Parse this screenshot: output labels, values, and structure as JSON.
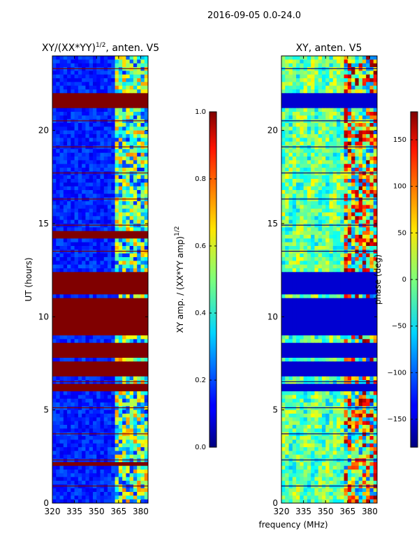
{
  "chart_data": [
    {
      "type": "heatmap",
      "suptitle": "2016-09-05 0.0-24.0",
      "title": "XY/(XX*YY)",
      "title_exp": "1/2",
      "title_suffix": ", anten. V5",
      "ylabel": "UT (hours)",
      "x_ticks": [
        320,
        335,
        350,
        365,
        380
      ],
      "xlim": [
        320,
        385
      ],
      "y_ticks": [
        0,
        5,
        10,
        15,
        20
      ],
      "ylim": [
        0,
        24
      ],
      "flagged_bands_hours": [
        [
          21.2,
          22.0
        ],
        [
          11.2,
          12.3
        ],
        [
          9.0,
          10.9
        ],
        [
          7.7,
          8.5
        ],
        [
          6.8,
          7.6
        ],
        [
          5.9,
          6.4
        ],
        [
          14.3,
          14.6
        ],
        [
          2.1,
          2.3
        ]
      ],
      "colorbar": {
        "label": "XY amp. / (XX*YY amp)",
        "label_exp": "1/2",
        "range": [
          0.0,
          1.0
        ],
        "ticks": [
          "0.0",
          "0.2",
          "0.4",
          "0.6",
          "0.8",
          "1.0"
        ]
      }
    },
    {
      "type": "heatmap",
      "title": "XY, anten. V5",
      "xlabel": "frequency (MHz)",
      "x_ticks": [
        320,
        335,
        350,
        365,
        380
      ],
      "xlim": [
        320,
        385
      ],
      "y_ticks": [
        0,
        5,
        10,
        15,
        20
      ],
      "ylim": [
        0,
        24
      ],
      "flagged_bands_hours": [
        [
          21.2,
          22.0
        ],
        [
          11.2,
          12.3
        ],
        [
          9.0,
          10.9
        ],
        [
          7.7,
          8.5
        ],
        [
          6.8,
          7.6
        ],
        [
          5.9,
          6.4
        ]
      ],
      "colorbar": {
        "label": "phase (deg)",
        "range": [
          -180,
          180
        ],
        "ticks": [
          "-150",
          "-100",
          "-50",
          "0",
          "50",
          "100",
          "150"
        ]
      }
    }
  ]
}
